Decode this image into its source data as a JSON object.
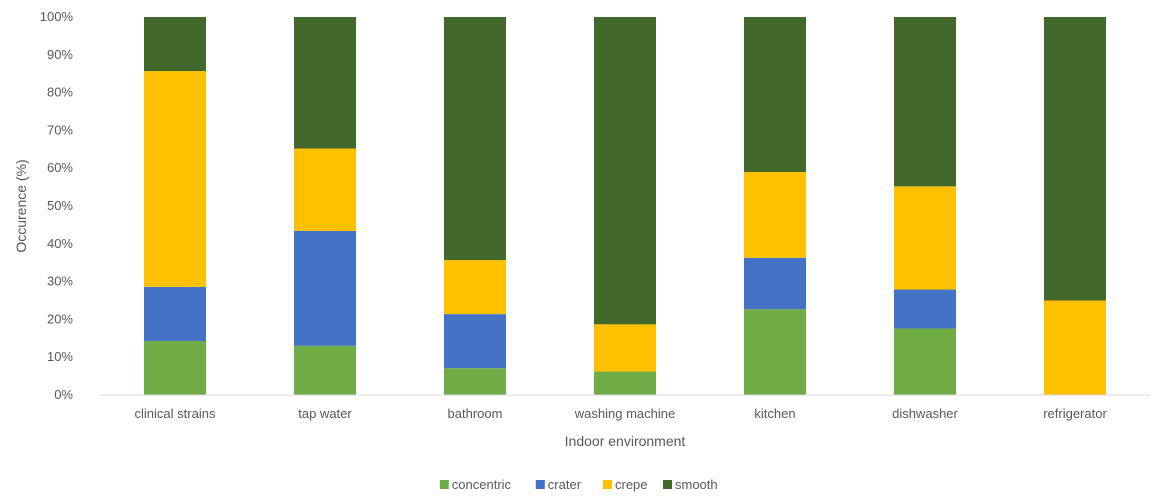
{
  "chart_data": {
    "type": "bar",
    "stacked": "percent",
    "categories": [
      "clinical strains",
      "tap water",
      "bathroom",
      "washing machine",
      "kitchen",
      "dishwasher",
      "refrigerator"
    ],
    "series": [
      {
        "name": "concentric",
        "color": "#70AD47",
        "values": [
          14.3,
          13.0,
          7.1,
          6.2,
          22.7,
          17.6,
          0
        ]
      },
      {
        "name": "crater",
        "color": "#4472C4",
        "values": [
          14.3,
          30.4,
          14.3,
          0,
          13.6,
          10.3,
          0
        ]
      },
      {
        "name": "crepe",
        "color": "#FFC000",
        "values": [
          57.1,
          21.8,
          14.3,
          12.5,
          22.7,
          27.3,
          25.0
        ]
      },
      {
        "name": "smooth",
        "color": "#43682B",
        "values": [
          14.3,
          34.8,
          64.3,
          81.3,
          41.0,
          44.8,
          75.0
        ]
      }
    ],
    "xlabel": "Indoor environment",
    "ylabel": "Occurence (%)",
    "ylim": [
      0,
      100
    ],
    "yticks": [
      "0%",
      "10%",
      "20%",
      "30%",
      "40%",
      "50%",
      "60%",
      "70%",
      "80%",
      "90%",
      "100%"
    ],
    "grid": false,
    "legend": "bottom"
  }
}
